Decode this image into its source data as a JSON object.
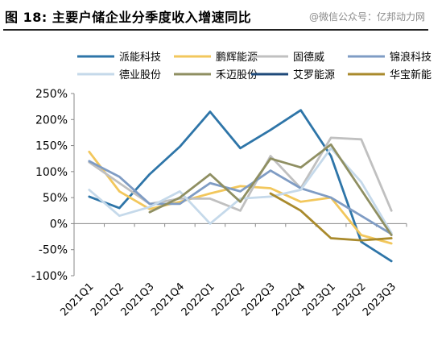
{
  "header": {
    "title": "图 18: 主要户储企业分季度收入增速同比",
    "watermark": "@微信公众号：亿邦动力网"
  },
  "chart_data": {
    "type": "line",
    "categories": [
      "2021Q1",
      "2021Q2",
      "2021Q3",
      "2021Q4",
      "2022Q1",
      "2022Q2",
      "2022Q3",
      "2022Q4",
      "2023Q1",
      "2023Q2",
      "2023Q3"
    ],
    "ylim": [
      -100,
      250
    ],
    "yticks": [
      -100,
      -50,
      0,
      50,
      100,
      150,
      200,
      250
    ],
    "ytick_labels": [
      "-100%",
      "-50%",
      "0%",
      "50%",
      "100%",
      "150%",
      "200%",
      "250%"
    ],
    "grid": false,
    "legend_position": "top",
    "series": [
      {
        "name": "派能科技",
        "color": "#2e75a8",
        "values": [
          52,
          30,
          95,
          148,
          215,
          145,
          180,
          218,
          130,
          -35,
          -72
        ]
      },
      {
        "name": "鹏辉能源",
        "color": "#f2c75c",
        "values": [
          138,
          62,
          28,
          42,
          58,
          72,
          68,
          42,
          50,
          -22,
          -38
        ]
      },
      {
        "name": "固德威",
        "color": "#c0c0c0",
        "values": [
          118,
          78,
          38,
          48,
          48,
          25,
          130,
          68,
          165,
          162,
          25
        ]
      },
      {
        "name": "锦浪科技",
        "color": "#7f9cc4",
        "values": [
          120,
          90,
          38,
          38,
          78,
          62,
          102,
          68,
          50,
          15,
          -20
        ]
      },
      {
        "name": "德业股份",
        "color": "#c5d9ea",
        "values": [
          65,
          15,
          32,
          62,
          0,
          48,
          52,
          65,
          145,
          80,
          -18
        ]
      },
      {
        "name": "禾迈股份",
        "color": "#8f8f62",
        "values": [
          null,
          null,
          22,
          50,
          95,
          42,
          125,
          108,
          152,
          65,
          -22
        ]
      },
      {
        "name": "艾罗能源",
        "color": "#1f4a7a",
        "values": [
          null,
          null,
          null,
          null,
          null,
          null,
          null,
          null,
          null,
          null,
          null
        ]
      },
      {
        "name": "华宝新能",
        "color": "#a98a2c",
        "values": [
          null,
          null,
          null,
          null,
          null,
          null,
          58,
          25,
          -28,
          -32,
          -28
        ]
      }
    ]
  }
}
